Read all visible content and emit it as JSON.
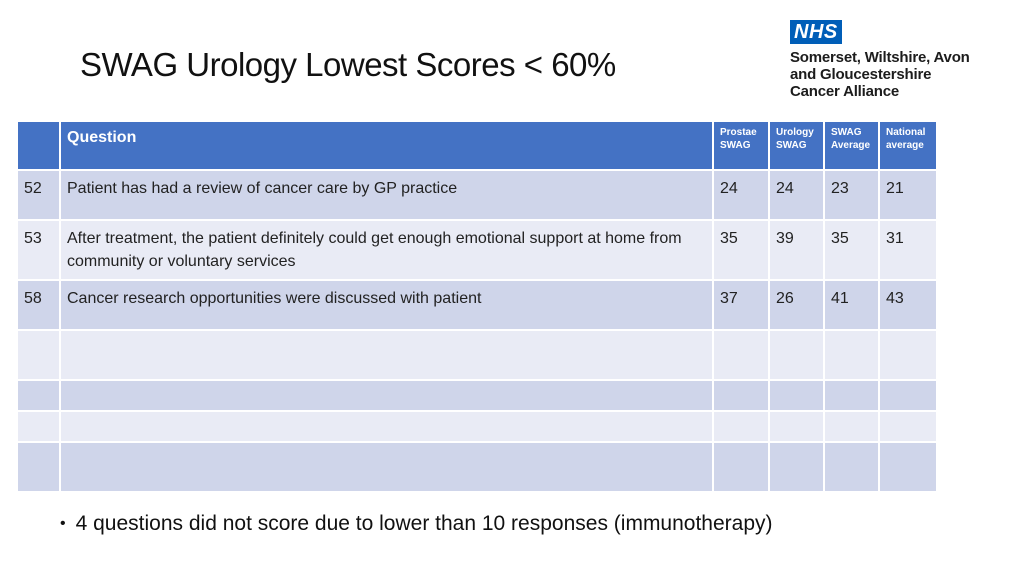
{
  "title": "SWAG Urology Lowest Scores < 60%",
  "logo": {
    "nhs": "NHS",
    "lines": [
      "Somerset, Wiltshire, Avon",
      "and Gloucestershire",
      "Cancer Alliance"
    ]
  },
  "table": {
    "headers": {
      "question": "Question",
      "prostate_swag": [
        "Prostae",
        "SWAG"
      ],
      "urology_swag": [
        "Urology",
        "SWAG"
      ],
      "swag_average": [
        "SWAG",
        "Average"
      ],
      "national_average": [
        "National",
        "average"
      ]
    },
    "rows": [
      {
        "num": "52",
        "question": "Patient has had a review of cancer care by GP practice",
        "prostate": "24",
        "urology": "24",
        "swag_avg": "23",
        "national": "21"
      },
      {
        "num": "53",
        "question": "After treatment, the patient definitely could get enough emotional support at home from community or voluntary services",
        "prostate": "35",
        "urology": "39",
        "swag_avg": "35",
        "national": "31"
      },
      {
        "num": "58",
        "question": "Cancer research opportunities were discussed with patient",
        "prostate": "37",
        "urology": "26",
        "swag_avg": "41",
        "national": "43"
      }
    ]
  },
  "bullet": "4 questions did not score due to lower than 10 responses (immunotherapy)"
}
